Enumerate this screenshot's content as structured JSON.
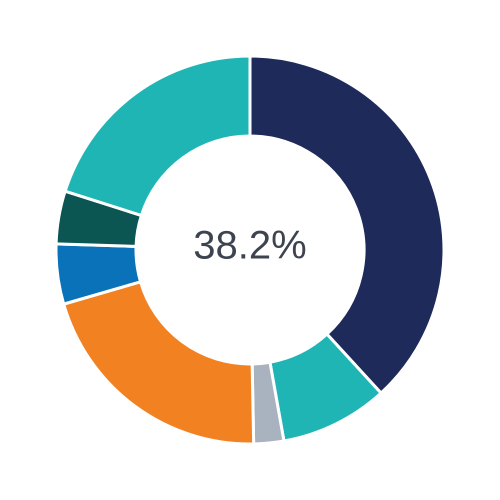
{
  "chart_data": {
    "type": "donut",
    "center_label": "38.2%",
    "values": [
      38.2,
      9.0,
      2.5,
      20.8,
      5.0,
      4.4,
      20.1
    ],
    "colors": [
      "#1e2b5a",
      "#1fb5b5",
      "#a9b3bf",
      "#f28122",
      "#0a72b8",
      "#0b5553",
      "#1fb5b5"
    ]
  }
}
